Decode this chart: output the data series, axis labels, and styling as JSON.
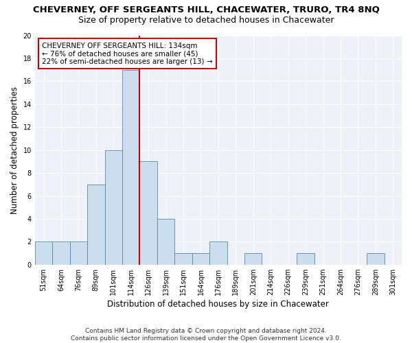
{
  "title": "CHEVERNEY, OFF SERGEANTS HILL, CHACEWATER, TRURO, TR4 8NQ",
  "subtitle": "Size of property relative to detached houses in Chacewater",
  "xlabel": "Distribution of detached houses by size in Chacewater",
  "ylabel": "Number of detached properties",
  "bin_labels": [
    "51sqm",
    "64sqm",
    "76sqm",
    "89sqm",
    "101sqm",
    "114sqm",
    "126sqm",
    "139sqm",
    "151sqm",
    "164sqm",
    "176sqm",
    "189sqm",
    "201sqm",
    "214sqm",
    "226sqm",
    "239sqm",
    "251sqm",
    "264sqm",
    "276sqm",
    "289sqm",
    "301sqm"
  ],
  "bar_heights": [
    2,
    2,
    2,
    7,
    10,
    17,
    9,
    4,
    1,
    1,
    2,
    0,
    1,
    0,
    0,
    1,
    0,
    0,
    0,
    1,
    0
  ],
  "bar_color": "#ccdded",
  "bar_edge_color": "#5588aa",
  "vline_color": "#cc0000",
  "annotation_text": "CHEVERNEY OFF SERGEANTS HILL: 134sqm\n← 76% of detached houses are smaller (45)\n22% of semi-detached houses are larger (13) →",
  "annotation_box_color": "#cc0000",
  "ylim": [
    0,
    20
  ],
  "yticks": [
    0,
    2,
    4,
    6,
    8,
    10,
    12,
    14,
    16,
    18,
    20
  ],
  "background_color": "#eef2f8",
  "grid_color": "#ffffff",
  "footer_text": "Contains HM Land Registry data © Crown copyright and database right 2024.\nContains public sector information licensed under the Open Government Licence v3.0.",
  "title_fontsize": 9.5,
  "subtitle_fontsize": 9,
  "xlabel_fontsize": 8.5,
  "ylabel_fontsize": 8.5,
  "tick_fontsize": 7,
  "footer_fontsize": 6.5
}
